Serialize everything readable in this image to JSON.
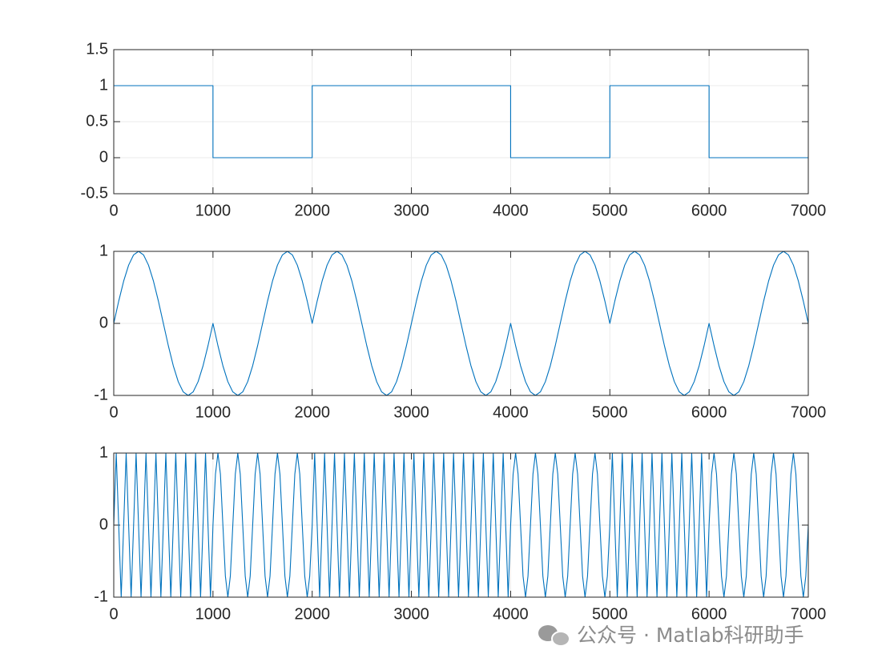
{
  "chart_data": [
    {
      "type": "line",
      "color": "#0072bd",
      "grid": true,
      "xlim": [
        0,
        7000
      ],
      "xticks": [
        0,
        1000,
        2000,
        3000,
        4000,
        5000,
        6000,
        7000
      ],
      "ylim": [
        -0.5,
        1.5
      ],
      "yticks": [
        -0.5,
        0,
        0.5,
        1,
        1.5
      ],
      "x": [
        0,
        1000,
        1000,
        2000,
        2000,
        4000,
        4000,
        5000,
        5000,
        6000,
        6000,
        7000
      ],
      "values": [
        1,
        1,
        0,
        0,
        1,
        1,
        0,
        0,
        1,
        1,
        0,
        0
      ]
    },
    {
      "type": "line",
      "color": "#0072bd",
      "grid": true,
      "xlim": [
        0,
        7000
      ],
      "xticks": [
        0,
        1000,
        2000,
        3000,
        4000,
        5000,
        6000,
        7000
      ],
      "ylim": [
        -1,
        1
      ],
      "yticks": [
        -1,
        0,
        1
      ],
      "x": [
        0,
        50,
        100,
        150,
        200,
        250,
        300,
        350,
        400,
        450,
        500,
        550,
        600,
        650,
        700,
        750,
        800,
        850,
        900,
        950,
        1000,
        1050,
        1100,
        1150,
        1200,
        1250,
        1300,
        1350,
        1400,
        1450,
        1500,
        1550,
        1600,
        1650,
        1700,
        1750,
        1800,
        1850,
        1900,
        1950,
        2000,
        2050,
        2100,
        2150,
        2200,
        2250,
        2300,
        2350,
        2400,
        2450,
        2500,
        2550,
        2600,
        2650,
        2700,
        2750,
        2800,
        2850,
        2900,
        2950,
        3000,
        3050,
        3100,
        3150,
        3200,
        3250,
        3300,
        3350,
        3400,
        3450,
        3500,
        3550,
        3600,
        3650,
        3700,
        3750,
        3800,
        3850,
        3900,
        3950,
        4000,
        4050,
        4100,
        4150,
        4200,
        4250,
        4300,
        4350,
        4400,
        4450,
        4500,
        4550,
        4600,
        4650,
        4700,
        4750,
        4800,
        4850,
        4900,
        4950,
        5000,
        5050,
        5100,
        5150,
        5200,
        5250,
        5300,
        5350,
        5400,
        5450,
        5500,
        5550,
        5600,
        5650,
        5700,
        5750,
        5800,
        5850,
        5900,
        5950,
        6000,
        6050,
        6100,
        6150,
        6200,
        6250,
        6300,
        6350,
        6400,
        6450,
        6500,
        6550,
        6600,
        6650,
        6700,
        6750,
        6800,
        6850,
        6900,
        6950,
        7000
      ],
      "values": [
        0,
        0.309,
        0.588,
        0.809,
        0.951,
        1,
        0.951,
        0.809,
        0.588,
        0.309,
        0,
        -0.309,
        -0.588,
        -0.809,
        -0.951,
        -1,
        -0.951,
        -0.809,
        -0.588,
        -0.309,
        0,
        -0.309,
        -0.588,
        -0.809,
        -0.951,
        -1,
        -0.951,
        -0.809,
        -0.588,
        -0.309,
        0,
        0.309,
        0.588,
        0.809,
        0.951,
        1,
        0.951,
        0.809,
        0.588,
        0.309,
        0,
        0.309,
        0.588,
        0.809,
        0.951,
        1,
        0.951,
        0.809,
        0.588,
        0.309,
        0,
        -0.309,
        -0.588,
        -0.809,
        -0.951,
        -1,
        -0.951,
        -0.809,
        -0.588,
        -0.309,
        0,
        0.309,
        0.588,
        0.809,
        0.951,
        1,
        0.951,
        0.809,
        0.588,
        0.309,
        0,
        -0.309,
        -0.588,
        -0.809,
        -0.951,
        -1,
        -0.951,
        -0.809,
        -0.588,
        -0.309,
        0,
        -0.309,
        -0.588,
        -0.809,
        -0.951,
        -1,
        -0.951,
        -0.809,
        -0.588,
        -0.309,
        0,
        0.309,
        0.588,
        0.809,
        0.951,
        1,
        0.951,
        0.809,
        0.588,
        0.309,
        0,
        0.309,
        0.588,
        0.809,
        0.951,
        1,
        0.951,
        0.809,
        0.588,
        0.309,
        0,
        -0.309,
        -0.588,
        -0.809,
        -0.951,
        -1,
        -0.951,
        -0.809,
        -0.588,
        -0.309,
        0,
        -0.309,
        -0.588,
        -0.809,
        -0.951,
        -1,
        -0.951,
        -0.809,
        -0.588,
        -0.309,
        0,
        0.309,
        0.588,
        0.809,
        0.951,
        1,
        0.951,
        0.809,
        0.588,
        0.309,
        0
      ]
    },
    {
      "type": "line",
      "color": "#0072bd",
      "grid": true,
      "xlim": [
        0,
        7000
      ],
      "xticks": [
        0,
        1000,
        2000,
        3000,
        4000,
        5000,
        6000,
        7000
      ],
      "ylim": [
        -1,
        1
      ],
      "yticks": [
        -1,
        0,
        1
      ],
      "x": [
        0,
        25,
        50,
        75,
        100,
        125,
        150,
        175,
        200,
        225,
        250,
        275,
        300,
        325,
        350,
        375,
        400,
        425,
        450,
        475,
        500,
        525,
        550,
        575,
        600,
        625,
        650,
        675,
        700,
        725,
        750,
        775,
        800,
        825,
        850,
        875,
        900,
        925,
        950,
        975,
        1000,
        1025,
        1050,
        1075,
        1100,
        1125,
        1150,
        1175,
        1200,
        1225,
        1250,
        1275,
        1300,
        1325,
        1350,
        1375,
        1400,
        1425,
        1450,
        1475,
        1500,
        1525,
        1550,
        1575,
        1600,
        1625,
        1650,
        1675,
        1700,
        1725,
        1750,
        1775,
        1800,
        1825,
        1850,
        1875,
        1900,
        1925,
        1950,
        1975,
        2000,
        2025,
        2050,
        2075,
        2100,
        2125,
        2150,
        2175,
        2200,
        2225,
        2250,
        2275,
        2300,
        2325,
        2350,
        2375,
        2400,
        2425,
        2450,
        2475,
        2500,
        2525,
        2550,
        2575,
        2600,
        2625,
        2650,
        2675,
        2700,
        2725,
        2750,
        2775,
        2800,
        2825,
        2850,
        2875,
        2900,
        2925,
        2950,
        2975,
        3000,
        3025,
        3050,
        3075,
        3100,
        3125,
        3150,
        3175,
        3200,
        3225,
        3250,
        3275,
        3300,
        3325,
        3350,
        3375,
        3400,
        3425,
        3450,
        3475,
        3500,
        3525,
        3550,
        3575,
        3600,
        3625,
        3650,
        3675,
        3700,
        3725,
        3750,
        3775,
        3800,
        3825,
        3850,
        3875,
        3900,
        3925,
        3950,
        3975,
        4000,
        4025,
        4050,
        4075,
        4100,
        4125,
        4150,
        4175,
        4200,
        4225,
        4250,
        4275,
        4300,
        4325,
        4350,
        4375,
        4400,
        4425,
        4450,
        4475,
        4500,
        4525,
        4550,
        4575,
        4600,
        4625,
        4650,
        4675,
        4700,
        4725,
        4750,
        4775,
        4800,
        4825,
        4850,
        4875,
        4900,
        4925,
        4950,
        4975,
        5000,
        5025,
        5050,
        5075,
        5100,
        5125,
        5150,
        5175,
        5200,
        5225,
        5250,
        5275,
        5300,
        5325,
        5350,
        5375,
        5400,
        5425,
        5450,
        5475,
        5500,
        5525,
        5550,
        5575,
        5600,
        5625,
        5650,
        5675,
        5700,
        5725,
        5750,
        5775,
        5800,
        5825,
        5850,
        5875,
        5900,
        5925,
        5950,
        5975,
        6000,
        6025,
        6050,
        6075,
        6100,
        6125,
        6150,
        6175,
        6200,
        6225,
        6250,
        6275,
        6300,
        6325,
        6350,
        6375,
        6400,
        6425,
        6450,
        6475,
        6500,
        6525,
        6550,
        6575,
        6600,
        6625,
        6650,
        6675,
        6700,
        6725,
        6750,
        6775,
        6800,
        6825,
        6850,
        6875,
        6900,
        6925,
        6950,
        6975,
        7000
      ],
      "values": [
        0,
        1,
        0,
        -1,
        0,
        1,
        0,
        -1,
        0,
        1,
        0,
        -1,
        0,
        1,
        0,
        -1,
        0,
        1,
        0,
        -1,
        0,
        1,
        0,
        -1,
        0,
        1,
        0,
        -1,
        0,
        1,
        0,
        -1,
        0,
        1,
        0,
        -1,
        0,
        1,
        0,
        -1,
        0,
        0.707,
        1,
        0.707,
        0,
        -0.707,
        -1,
        -0.707,
        0,
        0.707,
        1,
        0.707,
        0,
        -0.707,
        -1,
        -0.707,
        0,
        0.707,
        1,
        0.707,
        0,
        -0.707,
        -1,
        -0.707,
        0,
        0.707,
        1,
        0.707,
        0,
        -0.707,
        -1,
        -0.707,
        0,
        0.707,
        1,
        0.707,
        0,
        -0.707,
        -1,
        -0.707,
        0,
        1,
        0,
        -1,
        0,
        1,
        0,
        -1,
        0,
        1,
        0,
        -1,
        0,
        1,
        0,
        -1,
        0,
        1,
        0,
        -1,
        0,
        1,
        0,
        -1,
        0,
        1,
        0,
        -1,
        0,
        1,
        0,
        -1,
        0,
        1,
        0,
        -1,
        0,
        1,
        0,
        -1,
        0,
        1,
        0,
        -1,
        0,
        1,
        0,
        -1,
        0,
        1,
        0,
        -1,
        0,
        1,
        0,
        -1,
        0,
        1,
        0,
        -1,
        0,
        1,
        0,
        -1,
        0,
        1,
        0,
        -1,
        0,
        1,
        0,
        -1,
        0,
        1,
        0,
        -1,
        0,
        1,
        0,
        -1,
        0,
        0.707,
        1,
        0.707,
        0,
        -0.707,
        -1,
        -0.707,
        0,
        0.707,
        1,
        0.707,
        0,
        -0.707,
        -1,
        -0.707,
        0,
        0.707,
        1,
        0.707,
        0,
        -0.707,
        -1,
        -0.707,
        0,
        0.707,
        1,
        0.707,
        0,
        -0.707,
        -1,
        -0.707,
        0,
        0.707,
        1,
        0.707,
        0,
        -0.707,
        -1,
        -0.707,
        0,
        1,
        0,
        -1,
        0,
        1,
        0,
        -1,
        0,
        1,
        0,
        -1,
        0,
        1,
        0,
        -1,
        0,
        1,
        0,
        -1,
        0,
        1,
        0,
        -1,
        0,
        1,
        0,
        -1,
        0,
        1,
        0,
        -1,
        0,
        1,
        0,
        -1,
        0,
        1,
        0,
        -1,
        0,
        0.707,
        1,
        0.707,
        0,
        -0.707,
        -1,
        -0.707,
        0,
        0.707,
        1,
        0.707,
        0,
        -0.707,
        -1,
        -0.707,
        0,
        0.707,
        1,
        0.707,
        0,
        -0.707,
        -1,
        -0.707,
        0,
        0.707,
        1,
        0.707,
        0,
        -0.707,
        -1,
        -0.707,
        0,
        0.707,
        1,
        0.707,
        0,
        -0.707,
        -1,
        -0.707,
        0
      ]
    }
  ],
  "watermark": "公众号 · Matlab科研助手"
}
